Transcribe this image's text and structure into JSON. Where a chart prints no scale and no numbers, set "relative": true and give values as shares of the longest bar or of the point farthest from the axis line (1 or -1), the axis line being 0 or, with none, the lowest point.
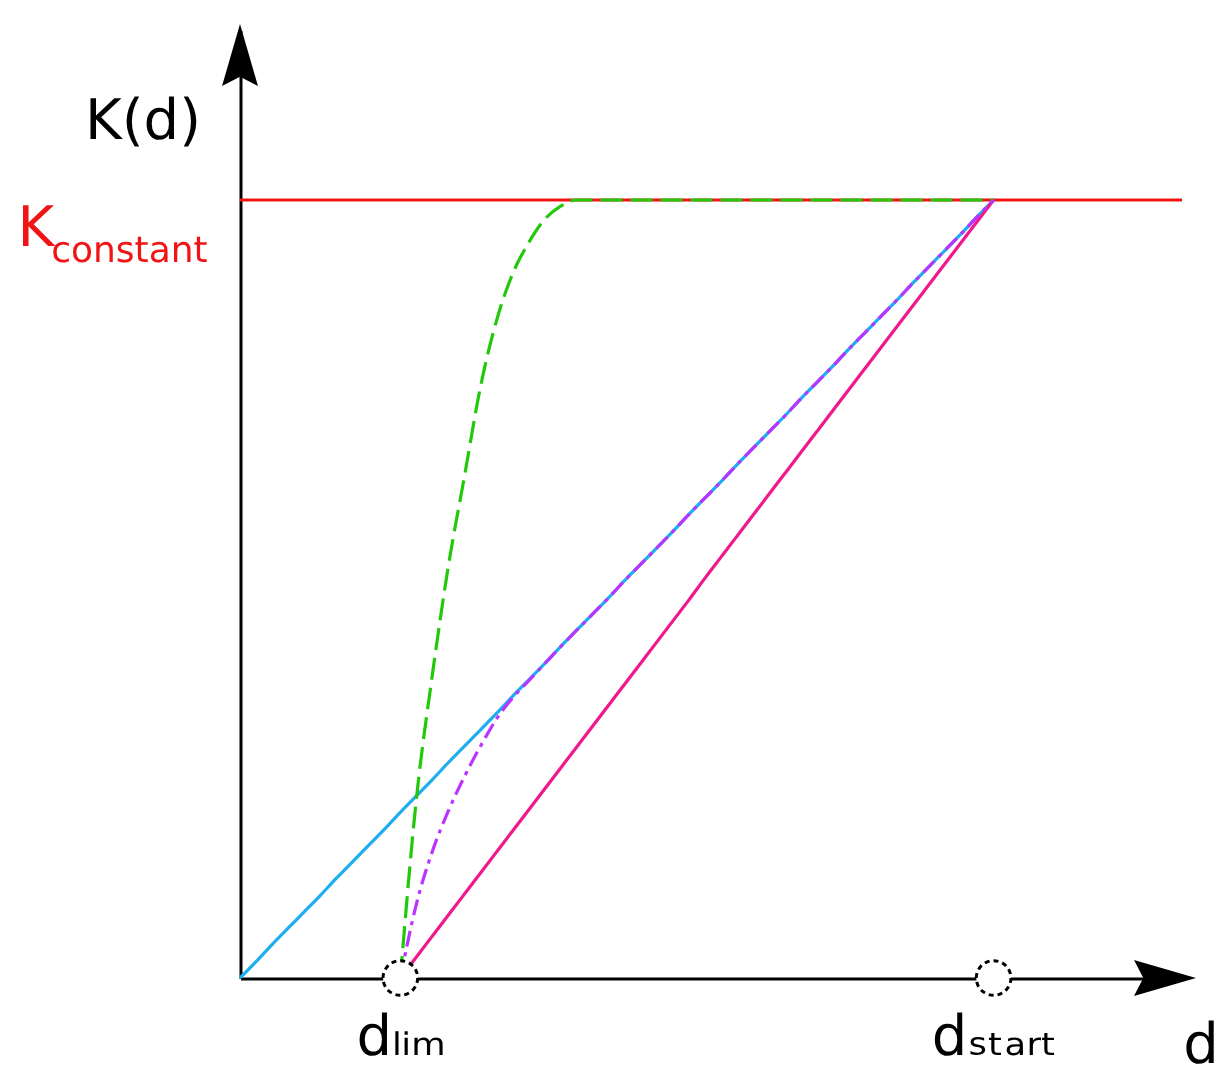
{
  "chart_data": {
    "type": "line",
    "relative": true,
    "xlabel": "d",
    "ylabel": "K(d)",
    "categories": [
      null,
      null,
      null,
      null,
      null,
      null,
      null,
      null,
      null,
      null,
      "dₗᵢₘ",
      null,
      null,
      null,
      null,
      null,
      null,
      null,
      null,
      null,
      null,
      null,
      null,
      null,
      null,
      null,
      null,
      null,
      null,
      null,
      null,
      null,
      null,
      null,
      null,
      null,
      null,
      null,
      null,
      null,
      null,
      null,
      null,
      null,
      null,
      null,
      null,
      "dₛₜₐᵣₜ",
      null,
      null,
      null,
      null,
      null,
      null,
      null,
      null,
      null,
      null,
      null
    ],
    "ref_lines": [
      {
        "axis": "y",
        "value": 1,
        "label": "K$_{constant}$",
        "color": "#f01414"
      }
    ],
    "series": [
      {
        "color": "#1eaef0",
        "values": [
          0,
          0.021,
          0.043,
          0.064,
          0.085,
          0.106,
          0.128,
          0.149,
          0.17,
          0.191,
          0.213,
          0.234,
          0.255,
          0.277,
          0.298,
          0.319,
          0.34,
          0.362,
          0.383,
          0.404,
          0.426,
          0.447,
          0.468,
          0.489,
          0.511,
          0.532,
          0.553,
          0.574,
          0.596,
          0.617,
          0.638,
          0.66,
          0.681,
          0.702,
          0.723,
          0.745,
          0.766,
          0.787,
          0.809,
          0.83,
          0.851,
          0.872,
          0.894,
          0.915,
          0.936,
          0.957,
          0.979,
          1,
          null,
          null,
          null,
          null,
          null,
          null,
          null,
          null,
          null,
          null,
          null
        ]
      },
      {
        "color": "#f0188c",
        "values": [
          null,
          null,
          null,
          null,
          null,
          null,
          null,
          null,
          null,
          null,
          0,
          0.027,
          0.054,
          0.081,
          0.108,
          0.135,
          0.162,
          0.189,
          0.216,
          0.243,
          0.27,
          0.297,
          0.324,
          0.351,
          0.378,
          0.405,
          0.432,
          0.459,
          0.486,
          0.514,
          0.541,
          0.568,
          0.595,
          0.622,
          0.649,
          0.676,
          0.703,
          0.73,
          0.757,
          0.784,
          0.811,
          0.838,
          0.865,
          0.892,
          0.919,
          0.946,
          0.973,
          1,
          null,
          null,
          null,
          null,
          null,
          null,
          null,
          null,
          null,
          null,
          null
        ]
      },
      {
        "color": "#22c90a",
        "line_style": "dashed",
        "values": [
          null,
          null,
          null,
          null,
          null,
          null,
          null,
          null,
          null,
          null,
          0,
          0.23,
          0.39,
          0.53,
          0.645,
          0.76,
          0.845,
          0.905,
          0.945,
          0.975,
          0.992,
          1,
          1,
          1,
          1,
          1,
          1,
          1,
          1,
          1,
          1,
          1,
          1,
          1,
          1,
          1,
          1,
          1,
          1,
          1,
          1,
          1,
          1,
          1,
          1,
          1,
          1,
          1,
          null,
          null,
          null,
          null,
          null,
          null,
          null,
          null,
          null,
          null,
          null
        ]
      },
      {
        "color": "#bb33ff",
        "line_style": "dashdot",
        "values": [
          null,
          null,
          null,
          null,
          null,
          null,
          null,
          null,
          null,
          null,
          0,
          0.095,
          0.163,
          0.215,
          0.259,
          0.298,
          0.333,
          0.36,
          0.382,
          0.404,
          0.426,
          0.447,
          0.468,
          0.489,
          0.511,
          0.532,
          0.553,
          0.574,
          0.596,
          0.617,
          0.638,
          0.66,
          0.681,
          0.702,
          0.723,
          0.745,
          0.766,
          0.787,
          0.809,
          0.83,
          0.851,
          0.872,
          0.894,
          0.915,
          0.936,
          0.957,
          0.979,
          1,
          null,
          null,
          null,
          null,
          null,
          null,
          null,
          null,
          null,
          null,
          null
        ]
      },
      {
        "type": "scatter",
        "color": "#000000",
        "marker": "circle",
        "values": [
          null,
          null,
          null,
          null,
          null,
          null,
          null,
          null,
          null,
          null,
          0,
          null,
          null,
          null,
          null,
          null,
          null,
          null,
          null,
          null,
          null,
          null,
          null,
          null,
          null,
          null,
          null,
          null,
          null,
          null,
          null,
          null,
          null,
          null,
          null,
          null,
          null,
          null,
          null,
          null,
          null,
          null,
          null,
          null,
          null,
          null,
          null,
          0,
          null,
          null,
          null,
          null,
          null,
          null,
          null,
          null,
          null,
          null,
          null
        ]
      }
    ]
  }
}
